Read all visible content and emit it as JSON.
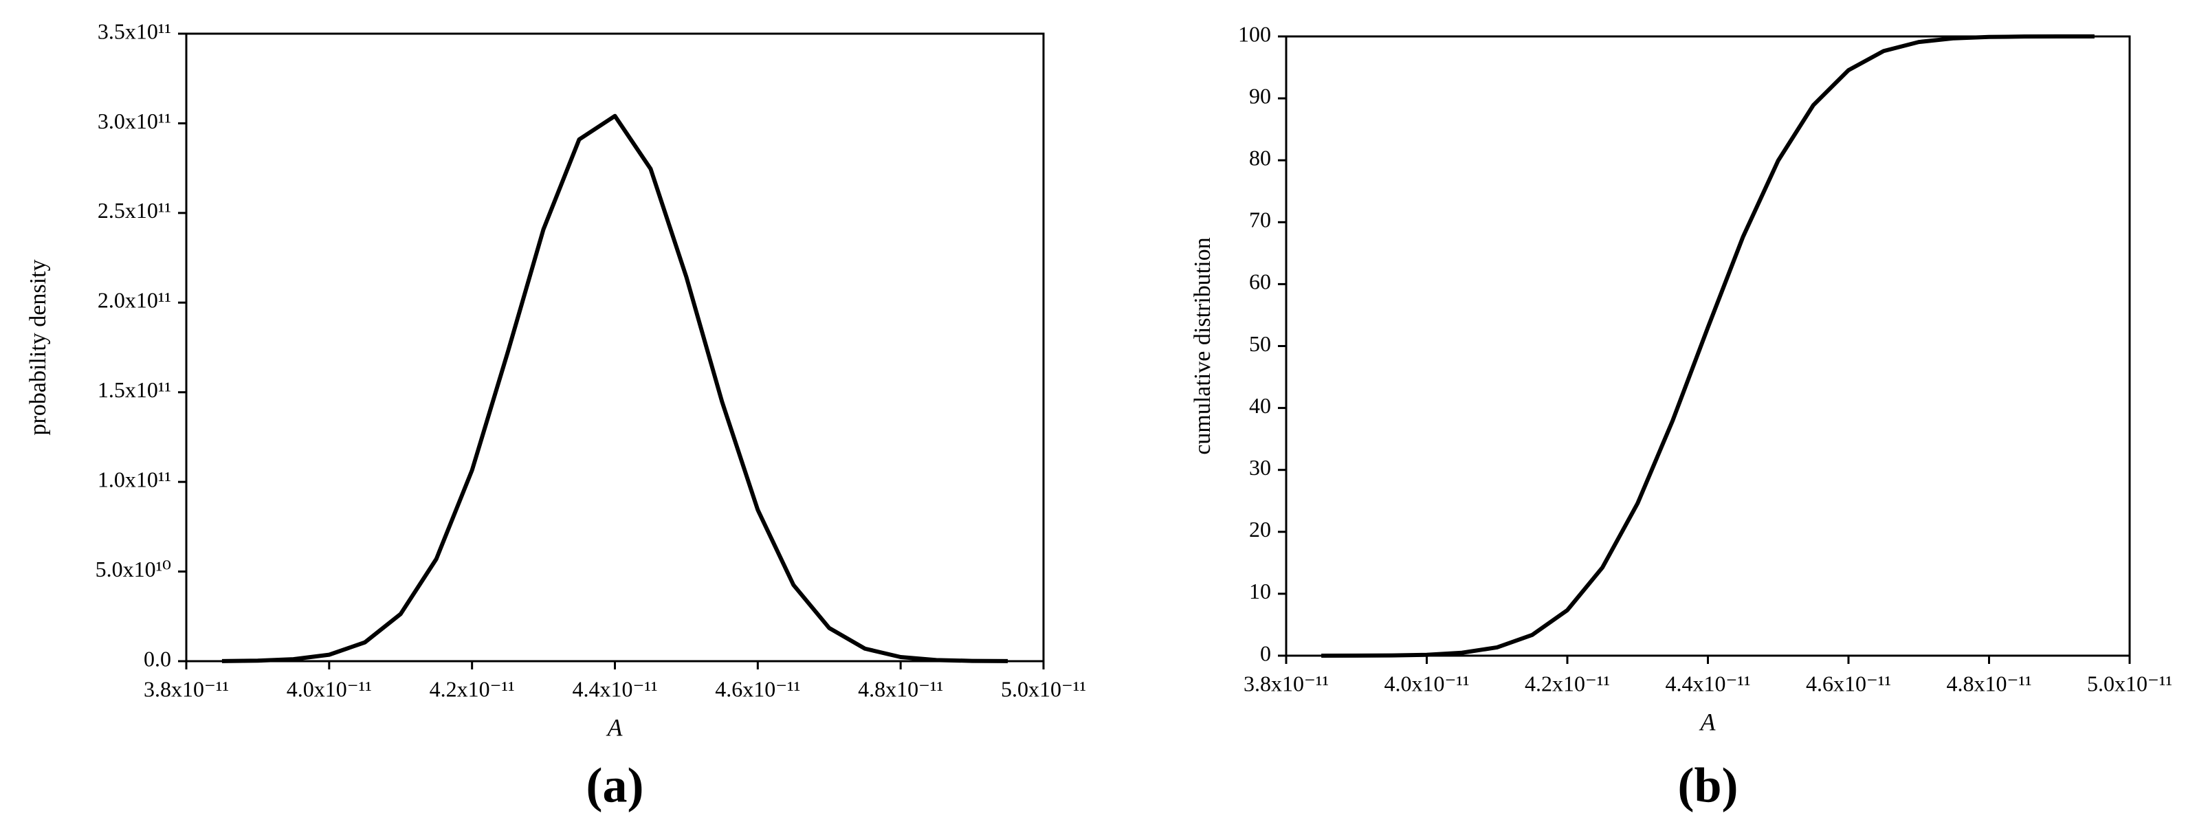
{
  "chart_data": [
    {
      "type": "line",
      "panel_label": "(a)",
      "x_label": "A",
      "y_label": "probability density",
      "x": [
        3.85e-11,
        3.9e-11,
        3.95e-11,
        4e-11,
        4.05e-11,
        4.1e-11,
        4.15e-11,
        4.2e-11,
        4.25e-11,
        4.3e-11,
        4.35e-11,
        4.4e-11,
        4.45e-11,
        4.5e-11,
        4.55e-11,
        4.6e-11,
        4.65e-11,
        4.7e-11,
        4.75e-11,
        4.8e-11,
        4.85e-11,
        4.9e-11,
        4.95e-11
      ],
      "series": [
        {
          "name": "probability density",
          "color": "#000000",
          "values": [
            60000000.0,
            280000000.0,
            1100000000.0,
            3600000000.0,
            10500000000.0,
            26300000000.0,
            57000000000.0,
            106500000000.0,
            172300000000.0,
            240900000000.0,
            291000000000.0,
            304100000000.0,
            274600000000.0,
            214300000000.0,
            144700000000.0,
            84400000000.0,
            42500000000.0,
            18500000000.0,
            7000000000.0,
            2300000000.0,
            640000000.0,
            160000000.0,
            30000000.0
          ]
        }
      ],
      "xlim": [
        3.8e-11,
        5e-11
      ],
      "xticks": [
        {
          "value": 3.8e-11,
          "label": "3.8x10⁻¹¹"
        },
        {
          "value": 4e-11,
          "label": "4.0x10⁻¹¹"
        },
        {
          "value": 4.2e-11,
          "label": "4.2x10⁻¹¹"
        },
        {
          "value": 4.4e-11,
          "label": "4.4x10⁻¹¹"
        },
        {
          "value": 4.6e-11,
          "label": "4.6x10⁻¹¹"
        },
        {
          "value": 4.8e-11,
          "label": "4.8x10⁻¹¹"
        },
        {
          "value": 5e-11,
          "label": "5.0x10⁻¹¹"
        }
      ],
      "ylim": [
        0,
        350000000000.0
      ],
      "yticks": [
        {
          "value": 0,
          "label": "0.0"
        },
        {
          "value": 50000000000.0,
          "label": "5.0x10¹⁰"
        },
        {
          "value": 100000000000.0,
          "label": "1.0x10¹¹"
        },
        {
          "value": 150000000000.0,
          "label": "1.5x10¹¹"
        },
        {
          "value": 200000000000.0,
          "label": "2.0x10¹¹"
        },
        {
          "value": 250000000000.0,
          "label": "2.5x10¹¹"
        },
        {
          "value": 300000000000.0,
          "label": "3.0x10¹¹"
        },
        {
          "value": 350000000000.0,
          "label": "3.5x10¹¹"
        }
      ]
    },
    {
      "type": "line",
      "panel_label": "(b)",
      "x_label": "A",
      "y_label": "cumulative distribution",
      "x": [
        3.85e-11,
        3.9e-11,
        3.95e-11,
        4e-11,
        4.05e-11,
        4.1e-11,
        4.15e-11,
        4.2e-11,
        4.25e-11,
        4.3e-11,
        4.35e-11,
        4.4e-11,
        4.45e-11,
        4.5e-11,
        4.55e-11,
        4.6e-11,
        4.65e-11,
        4.7e-11,
        4.75e-11,
        4.8e-11,
        4.85e-11,
        4.9e-11,
        4.95e-11
      ],
      "series": [
        {
          "name": "cumulative distribution",
          "color": "#000000",
          "values": [
            0.002,
            0.009,
            0.04,
            0.14,
            0.47,
            1.34,
            3.35,
            7.35,
            14.25,
            24.6,
            38.0,
            53.0,
            67.65,
            79.95,
            88.9,
            94.55,
            97.64,
            99.1,
            99.7,
            99.91,
            99.98,
            99.995,
            100.0
          ]
        }
      ],
      "xlim": [
        3.8e-11,
        5e-11
      ],
      "xticks": [
        {
          "value": 3.8e-11,
          "label": "3.8x10⁻¹¹"
        },
        {
          "value": 4e-11,
          "label": "4.0x10⁻¹¹"
        },
        {
          "value": 4.2e-11,
          "label": "4.2x10⁻¹¹"
        },
        {
          "value": 4.4e-11,
          "label": "4.4x10⁻¹¹"
        },
        {
          "value": 4.6e-11,
          "label": "4.6x10⁻¹¹"
        },
        {
          "value": 4.8e-11,
          "label": "4.8x10⁻¹¹"
        },
        {
          "value": 5e-11,
          "label": "5.0x10⁻¹¹"
        }
      ],
      "ylim": [
        0,
        100
      ],
      "yticks": [
        0,
        10,
        20,
        30,
        40,
        50,
        60,
        70,
        80,
        90,
        100
      ]
    }
  ]
}
